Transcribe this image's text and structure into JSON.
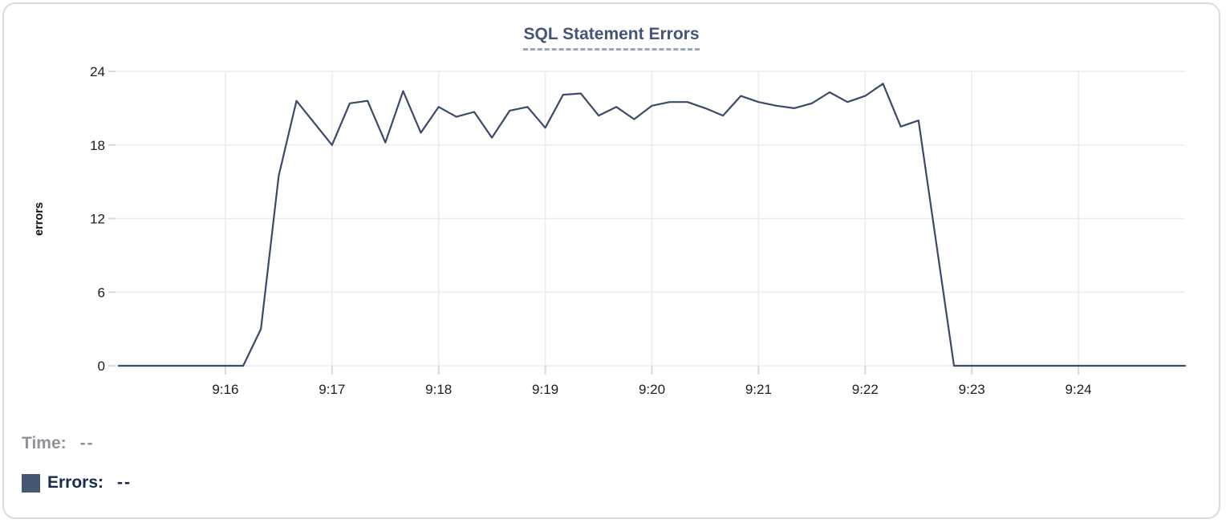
{
  "title": "SQL Statement Errors",
  "legend": {
    "time_label": "Time:",
    "time_value": "--",
    "errors_label": "Errors:",
    "errors_value": "--"
  },
  "colors": {
    "line": "#3a4a6b",
    "title_text": "#44557a",
    "title_underline": "#9aa5bf",
    "grid": "#ececec",
    "tick": "#d9d9d9",
    "axis_text": "#1d1d1f",
    "legend_time": "#8f9398",
    "legend_errors": "#1b2a52",
    "swatch": "#475672",
    "card_border": "#dcdcdf"
  },
  "chart_data": {
    "type": "line",
    "title": "SQL Statement Errors",
    "xlabel": "",
    "ylabel": "errors",
    "ylim": [
      0,
      24
    ],
    "y_ticks": [
      0,
      6,
      12,
      18,
      24
    ],
    "x_tick_labels": [
      "9:16",
      "9:17",
      "9:18",
      "9:19",
      "9:20",
      "9:21",
      "9:22",
      "9:23",
      "9:24"
    ],
    "grid": true,
    "legend_position": "bottom-left",
    "series_name": "Errors",
    "times": [
      "9:15:00",
      "9:15:10",
      "9:15:20",
      "9:15:30",
      "9:15:40",
      "9:15:50",
      "9:16:00",
      "9:16:10",
      "9:16:20",
      "9:16:30",
      "9:16:40",
      "9:16:50",
      "9:17:00",
      "9:17:10",
      "9:17:20",
      "9:17:30",
      "9:17:40",
      "9:17:50",
      "9:18:00",
      "9:18:10",
      "9:18:20",
      "9:18:30",
      "9:18:40",
      "9:18:50",
      "9:19:00",
      "9:19:10",
      "9:19:20",
      "9:19:30",
      "9:19:40",
      "9:19:50",
      "9:20:00",
      "9:20:10",
      "9:20:20",
      "9:20:30",
      "9:20:40",
      "9:20:50",
      "9:21:00",
      "9:21:10",
      "9:21:20",
      "9:21:30",
      "9:21:40",
      "9:21:50",
      "9:22:00",
      "9:22:10",
      "9:22:20",
      "9:22:30",
      "9:22:40",
      "9:22:50",
      "9:23:00",
      "9:23:10",
      "9:23:20",
      "9:23:30",
      "9:23:40",
      "9:23:50",
      "9:24:00",
      "9:24:10",
      "9:24:20",
      "9:24:30",
      "9:24:40",
      "9:24:50",
      "9:25:00"
    ],
    "values": [
      0,
      0,
      0,
      0,
      0,
      0,
      0,
      0,
      3,
      15.5,
      21.6,
      19.8,
      18,
      21.4,
      21.6,
      18.2,
      22.4,
      19,
      21.1,
      20.3,
      20.7,
      18.6,
      20.8,
      21.1,
      19.4,
      22.1,
      22.2,
      20.4,
      21.1,
      20.1,
      21.2,
      21.5,
      21.5,
      21,
      20.4,
      22,
      21.5,
      21.2,
      21,
      21.4,
      22.3,
      21.5,
      22,
      23,
      19.5,
      20,
      10,
      0,
      0,
      0,
      0,
      0,
      0,
      0,
      0,
      0,
      0,
      0,
      0,
      0,
      0
    ]
  }
}
